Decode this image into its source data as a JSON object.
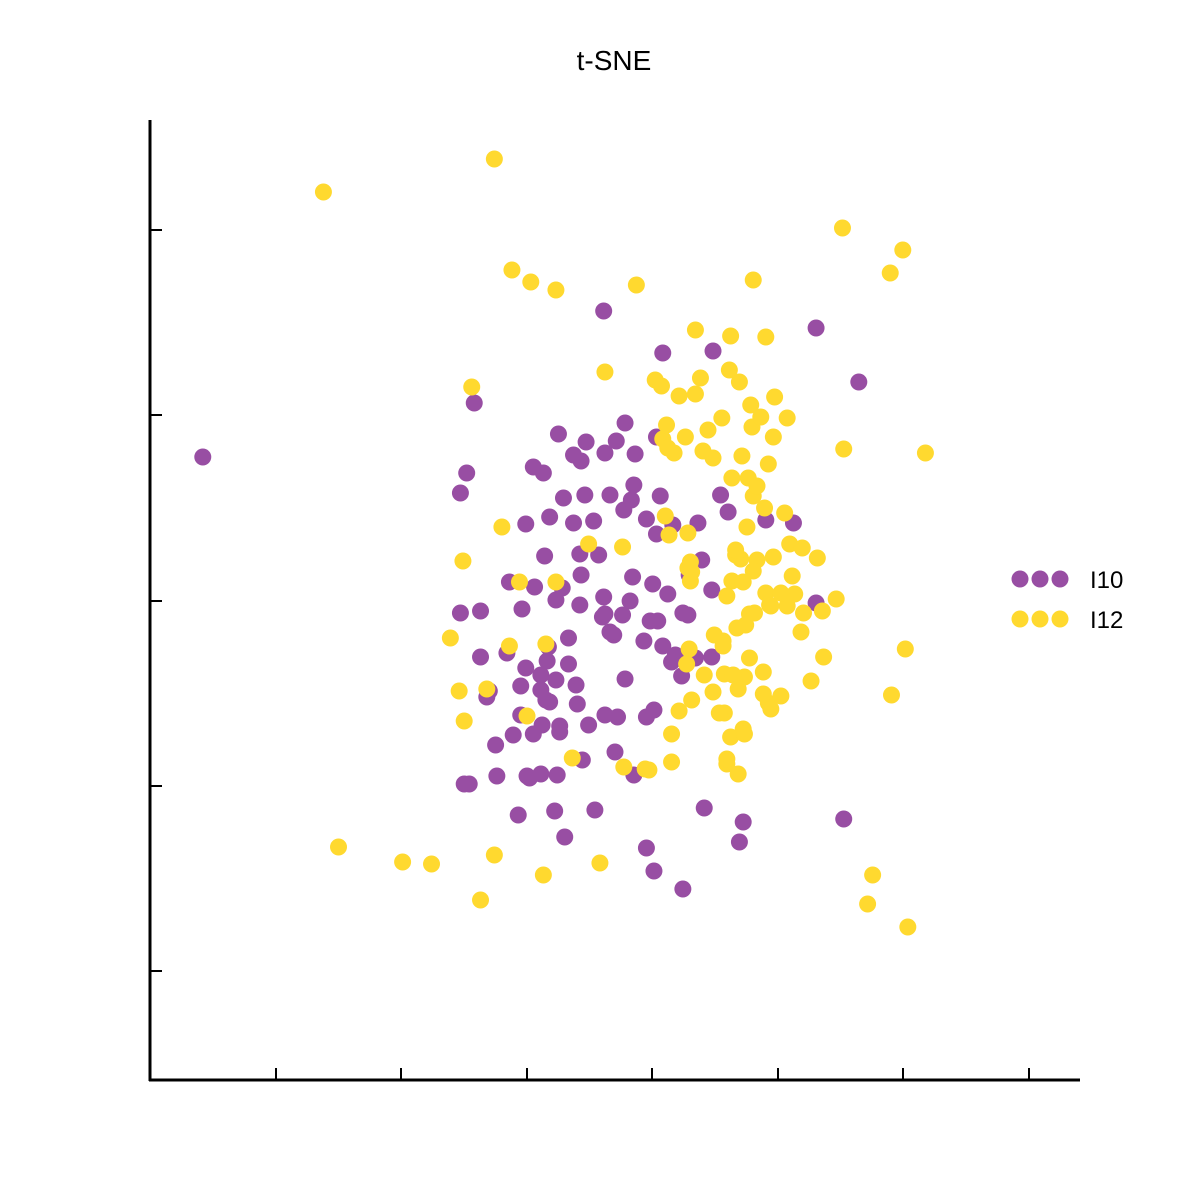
{
  "chart_data": {
    "type": "scatter",
    "title": "t-SNE",
    "xlabel": "",
    "ylabel": "",
    "xlim": [
      0,
      740
    ],
    "ylim": [
      0,
      960
    ],
    "x_ticks": [
      0,
      100,
      200,
      300,
      400,
      500,
      600,
      700
    ],
    "y_ticks": [
      0,
      1,
      2,
      3,
      4,
      5
    ],
    "tick_labels_shown": false,
    "grid": false,
    "legend_position": "right",
    "series": [
      {
        "name": "I10",
        "color": "#984ea3",
        "points": [
          [
            42,
            623
          ],
          [
            361,
            769
          ],
          [
            408,
            727
          ],
          [
            530,
            752
          ],
          [
            258,
            677
          ],
          [
            252,
            607
          ],
          [
            448,
            729
          ],
          [
            564,
            698
          ],
          [
            313,
            607
          ],
          [
            337,
            625
          ],
          [
            362,
            627
          ],
          [
            386,
            626
          ],
          [
            403,
            643
          ],
          [
            378,
            657
          ],
          [
            454,
            585
          ],
          [
            325,
            646
          ],
          [
            347,
            638
          ],
          [
            343,
            619
          ],
          [
            371,
            639
          ],
          [
            305,
            613
          ],
          [
            329,
            582
          ],
          [
            346,
            585
          ],
          [
            366,
            585
          ],
          [
            385,
            595
          ],
          [
            406,
            584
          ],
          [
            460,
            568
          ],
          [
            490,
            560
          ],
          [
            512,
            557
          ],
          [
            299,
            556
          ],
          [
            318,
            563
          ],
          [
            337,
            557
          ],
          [
            353,
            559
          ],
          [
            377,
            570
          ],
          [
            383,
            580
          ],
          [
            395,
            561
          ],
          [
            416,
            555
          ],
          [
            436,
            557
          ],
          [
            314,
            524
          ],
          [
            342,
            526
          ],
          [
            357,
            525
          ],
          [
            403,
            546
          ],
          [
            439,
            520
          ],
          [
            247,
            587
          ],
          [
            306,
            493
          ],
          [
            328,
            492
          ],
          [
            343,
            505
          ],
          [
            361,
            483
          ],
          [
            384,
            503
          ],
          [
            400,
            496
          ],
          [
            429,
            505
          ],
          [
            447,
            490
          ],
          [
            286,
            498
          ],
          [
            360,
            463
          ],
          [
            369,
            445
          ],
          [
            382,
            479
          ],
          [
            398,
            459
          ],
          [
            412,
            486
          ],
          [
            263,
            469
          ],
          [
            296,
            471
          ],
          [
            323,
            480
          ],
          [
            342,
            475
          ],
          [
            366,
            448
          ],
          [
            404,
            459
          ],
          [
            424,
            467
          ],
          [
            263,
            423
          ],
          [
            284,
            427
          ],
          [
            317,
            433
          ],
          [
            333,
            442
          ],
          [
            362,
            466
          ],
          [
            376,
            465
          ],
          [
            393,
            439
          ],
          [
            408,
            434
          ],
          [
            418,
            425
          ],
          [
            428,
            465
          ],
          [
            270,
            389
          ],
          [
            316,
            419
          ],
          [
            333,
            416
          ],
          [
            299,
            412
          ],
          [
            311,
            405
          ],
          [
            323,
            400
          ],
          [
            339,
            395
          ],
          [
            378,
            401
          ],
          [
            415,
            418
          ],
          [
            434,
            422
          ],
          [
            530,
            477
          ],
          [
            247,
            467
          ],
          [
            295,
            394
          ],
          [
            311,
            390
          ],
          [
            318,
            378
          ],
          [
            312,
            355
          ],
          [
            326,
            348
          ],
          [
            349,
            355
          ],
          [
            372,
            363
          ],
          [
            295,
            365
          ],
          [
            315,
            380
          ],
          [
            340,
            376
          ],
          [
            362,
            365
          ],
          [
            395,
            363
          ],
          [
            401,
            370
          ],
          [
            423,
            404
          ],
          [
            447,
            423
          ],
          [
            289,
            345
          ],
          [
            305,
            346
          ],
          [
            326,
            354
          ],
          [
            275,
            335
          ],
          [
            276,
            304
          ],
          [
            300,
            304
          ],
          [
            324,
            305
          ],
          [
            344,
            320
          ],
          [
            370,
            328
          ],
          [
            311,
            306
          ],
          [
            268,
            383
          ],
          [
            250,
            296
          ],
          [
            385,
            305
          ],
          [
            472,
            258
          ],
          [
            322,
            269
          ],
          [
            302,
            302
          ],
          [
            293,
            265
          ],
          [
            354,
            270
          ],
          [
            395,
            232
          ],
          [
            441,
            272
          ],
          [
            552,
            261
          ],
          [
            401,
            209
          ],
          [
            330,
            243
          ],
          [
            469,
            238
          ],
          [
            254,
            296
          ],
          [
            424,
            191
          ]
        ]
      },
      {
        "name": "I12",
        "color": "#ffd92f",
        "points": [
          [
            274,
            921
          ],
          [
            138,
            888
          ],
          [
            323,
            790
          ],
          [
            288,
            810
          ],
          [
            303,
            798
          ],
          [
            551,
            852
          ],
          [
            599,
            830
          ],
          [
            589,
            807
          ],
          [
            617,
            627
          ],
          [
            480,
            800
          ],
          [
            387,
            795
          ],
          [
            434,
            750
          ],
          [
            462,
            744
          ],
          [
            490,
            743
          ],
          [
            402,
            700
          ],
          [
            438,
            702
          ],
          [
            461,
            710
          ],
          [
            497,
            683
          ],
          [
            421,
            684
          ],
          [
            434,
            686
          ],
          [
            469,
            698
          ],
          [
            455,
            662
          ],
          [
            444,
            650
          ],
          [
            478,
            675
          ],
          [
            479,
            653
          ],
          [
            486,
            663
          ],
          [
            507,
            662
          ],
          [
            362,
            708
          ],
          [
            256,
            693
          ],
          [
            407,
            694
          ],
          [
            408,
            641
          ],
          [
            411,
            655
          ],
          [
            412,
            632
          ],
          [
            426,
            643
          ],
          [
            440,
            629
          ],
          [
            471,
            624
          ],
          [
            480,
            584
          ],
          [
            448,
            622
          ],
          [
            476,
            602
          ],
          [
            492,
            616
          ],
          [
            417,
            627
          ],
          [
            496,
            643
          ],
          [
            552,
            631
          ],
          [
            505,
            567
          ],
          [
            463,
            602
          ],
          [
            483,
            594
          ],
          [
            489,
            572
          ],
          [
            496,
            523
          ],
          [
            410,
            564
          ],
          [
            413,
            545
          ],
          [
            428,
            547
          ],
          [
            475,
            553
          ],
          [
            509,
            536
          ],
          [
            519,
            532
          ],
          [
            470,
            521
          ],
          [
            428,
            512
          ],
          [
            463,
            499
          ],
          [
            466,
            525
          ],
          [
            349,
            536
          ],
          [
            456,
            439
          ],
          [
            477,
            466
          ],
          [
            546,
            481
          ],
          [
            280,
            553
          ],
          [
            376,
            533
          ],
          [
            456,
            434
          ],
          [
            507,
            474
          ],
          [
            483,
            520
          ],
          [
            511,
            504
          ],
          [
            531,
            522
          ],
          [
            294,
            498
          ],
          [
            430,
            499
          ],
          [
            472,
            498
          ],
          [
            493,
            475
          ],
          [
            513,
            486
          ],
          [
            535,
            469
          ],
          [
            466,
            530
          ],
          [
            480,
            509
          ],
          [
            490,
            487
          ],
          [
            459,
            484
          ],
          [
            518,
            448
          ],
          [
            601,
            431
          ],
          [
            520,
            467
          ],
          [
            441,
            405
          ],
          [
            477,
            422
          ],
          [
            474,
            455
          ],
          [
            494,
            474
          ],
          [
            481,
            467
          ],
          [
            449,
            445
          ],
          [
            467,
            452
          ],
          [
            457,
            406
          ],
          [
            431,
            380
          ],
          [
            429,
            431
          ],
          [
            488,
            408
          ],
          [
            492,
            377
          ],
          [
            526,
            399
          ],
          [
            473,
            403
          ],
          [
            427,
            416
          ],
          [
            464,
            405
          ],
          [
            468,
            391
          ],
          [
            448,
            388
          ],
          [
            488,
            386
          ],
          [
            502,
            384
          ],
          [
            462,
            343
          ],
          [
            472,
            351
          ],
          [
            494,
            371
          ],
          [
            468,
            306
          ],
          [
            415,
            346
          ],
          [
            457,
            367
          ],
          [
            397,
            310
          ],
          [
            536,
            423
          ],
          [
            590,
            385
          ],
          [
            250,
            359
          ],
          [
            315,
            436
          ],
          [
            323,
            498
          ],
          [
            239,
            442
          ],
          [
            268,
            391
          ],
          [
            300,
            364
          ],
          [
            286,
            434
          ],
          [
            394,
            311
          ],
          [
            336,
            322
          ],
          [
            377,
            313
          ],
          [
            421,
            369
          ],
          [
            246,
            389
          ],
          [
            415,
            318
          ],
          [
            459,
            316
          ],
          [
            459,
            321
          ],
          [
            473,
            346
          ],
          [
            453,
            367
          ],
          [
            502,
            487
          ],
          [
            249,
            519
          ],
          [
            431,
            508
          ],
          [
            313,
            205
          ],
          [
            430,
            518
          ],
          [
            224,
            216
          ],
          [
            201,
            218
          ],
          [
            358,
            217
          ],
          [
            150,
            233
          ],
          [
            575,
            205
          ],
          [
            571,
            176
          ],
          [
            603,
            153
          ],
          [
            263,
            180
          ],
          [
            274,
            225
          ]
        ]
      }
    ]
  }
}
